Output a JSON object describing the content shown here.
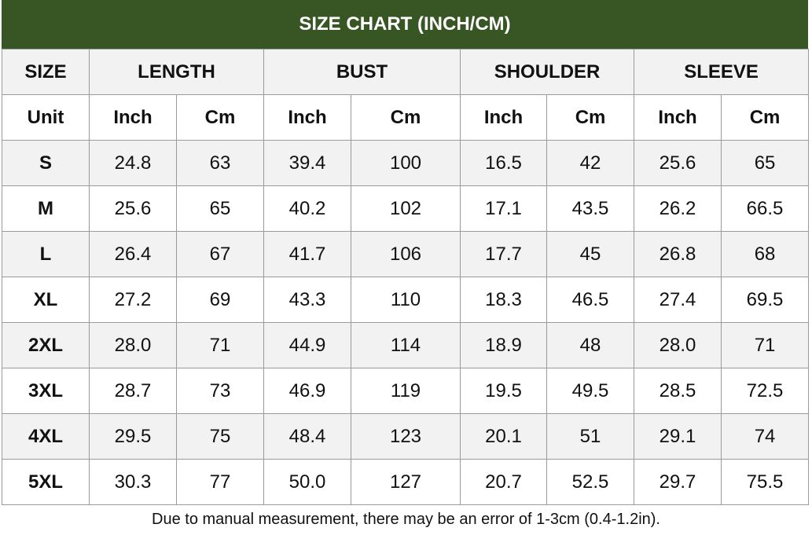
{
  "title": "SIZE CHART (INCH/CM)",
  "table": {
    "header": [
      "SIZE",
      "LENGTH",
      "BUST",
      "SHOULDER",
      "SLEEVE"
    ],
    "units": [
      "Unit",
      "Inch",
      "Cm",
      "Inch",
      "Cm",
      "Inch",
      "Cm",
      "Inch",
      "Cm"
    ],
    "rows": [
      [
        "S",
        "24.8",
        "63",
        "39.4",
        "100",
        "16.5",
        "42",
        "25.6",
        "65"
      ],
      [
        "M",
        "25.6",
        "65",
        "40.2",
        "102",
        "17.1",
        "43.5",
        "26.2",
        "66.5"
      ],
      [
        "L",
        "26.4",
        "67",
        "41.7",
        "106",
        "17.7",
        "45",
        "26.8",
        "68"
      ],
      [
        "XL",
        "27.2",
        "69",
        "43.3",
        "110",
        "18.3",
        "46.5",
        "27.4",
        "69.5"
      ],
      [
        "2XL",
        "28.0",
        "71",
        "44.9",
        "114",
        "18.9",
        "48",
        "28.0",
        "71"
      ],
      [
        "3XL",
        "28.7",
        "73",
        "46.9",
        "119",
        "19.5",
        "49.5",
        "28.5",
        "72.5"
      ],
      [
        "4XL",
        "29.5",
        "75",
        "48.4",
        "123",
        "20.1",
        "51",
        "29.1",
        "74"
      ],
      [
        "5XL",
        "30.3",
        "77",
        "50.0",
        "127",
        "20.7",
        "52.5",
        "29.7",
        "75.5"
      ]
    ]
  },
  "footnote": "Due to manual measurement, there may be an error of 1-3cm (0.4-1.2in)."
}
